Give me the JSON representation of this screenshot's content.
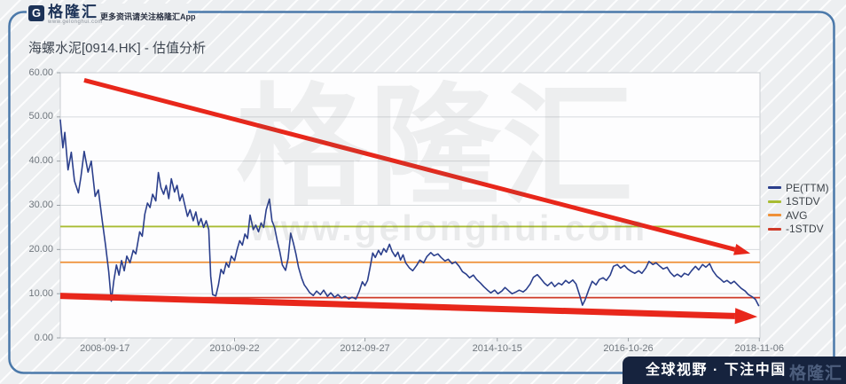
{
  "header": {
    "logo": {
      "icon": "G",
      "brand": "格隆汇",
      "url": "www.gelonghui.com",
      "tagline": "更多资讯请关注格隆汇App"
    },
    "title": "海螺水泥[0914.HK] - 估值分析"
  },
  "watermark": {
    "brand": "格隆汇",
    "url": "www.gelonghui.com"
  },
  "footer": {
    "slogan": "全球视野 · 下注中国",
    "brand": "格隆汇"
  },
  "colors": {
    "pe_line": "#2b3f8c",
    "stdv1_line": "#a8bc32",
    "avg_line": "#ef9036",
    "neg_stdv1_line": "#cf3a28",
    "arrow": "#e8271b",
    "frame": "#4b79aa",
    "footer_bg": "#16233e",
    "grid": "#d7dadd"
  },
  "legend": [
    {
      "label": "PE(TTM)",
      "color": "#2b3f8c"
    },
    {
      "label": "1STDV",
      "color": "#a8bc32"
    },
    {
      "label": "AVG",
      "color": "#ef9036"
    },
    {
      "label": "-1STDV",
      "color": "#cf3a28"
    }
  ],
  "chart_data": {
    "type": "line",
    "title": "海螺水泥[0914.HK] - 估值分析",
    "xlabel": "",
    "ylabel": "PE(TTM)",
    "grid": true,
    "legend_position": "right",
    "ylim": [
      0,
      60
    ],
    "xlim": [
      2008.02,
      2018.86
    ],
    "yticks": [
      {
        "value": 0,
        "label": "0.00"
      },
      {
        "value": 10,
        "label": "10.00"
      },
      {
        "value": 20,
        "label": "20.00"
      },
      {
        "value": 30,
        "label": "30.00"
      },
      {
        "value": 40,
        "label": "40.00"
      },
      {
        "value": 50,
        "label": "50.00"
      },
      {
        "value": 60,
        "label": "60.00"
      }
    ],
    "xticks": [
      {
        "year": 2008.71,
        "label": "2008-09-17"
      },
      {
        "year": 2010.72,
        "label": "2010-09-22"
      },
      {
        "year": 2012.74,
        "label": "2012-09-27"
      },
      {
        "year": 2014.79,
        "label": "2014-10-15"
      },
      {
        "year": 2016.82,
        "label": "2016-10-26"
      },
      {
        "year": 2018.85,
        "label": "2018-11-06"
      }
    ],
    "reference_lines": [
      {
        "name": "1STDV",
        "value": 25.2,
        "color": "#a8bc32"
      },
      {
        "name": "AVG",
        "value": 17.1,
        "color": "#ef9036"
      },
      {
        "name": "-1STDV",
        "value": 9.1,
        "color": "#cf3a28"
      }
    ],
    "annotations": [
      {
        "type": "arrow",
        "from": [
          2008.39,
          58.3
        ],
        "to": [
          2018.71,
          19.1
        ],
        "width": 5
      },
      {
        "type": "arrow",
        "from": [
          2008.02,
          9.5
        ],
        "to": [
          2018.82,
          4.8
        ],
        "width": 7
      }
    ],
    "series": [
      {
        "name": "PE(TTM)",
        "color": "#2b3f8c",
        "points": [
          [
            2008.02,
            49.3
          ],
          [
            2008.06,
            43.0
          ],
          [
            2008.09,
            46.5
          ],
          [
            2008.14,
            38.0
          ],
          [
            2008.19,
            42.0
          ],
          [
            2008.24,
            35.5
          ],
          [
            2008.3,
            32.8
          ],
          [
            2008.34,
            36.5
          ],
          [
            2008.39,
            42.2
          ],
          [
            2008.45,
            37.5
          ],
          [
            2008.5,
            40.0
          ],
          [
            2008.56,
            32.0
          ],
          [
            2008.61,
            33.5
          ],
          [
            2008.67,
            26.5
          ],
          [
            2008.72,
            21.0
          ],
          [
            2008.77,
            15.0
          ],
          [
            2008.81,
            8.3
          ],
          [
            2008.85,
            13.0
          ],
          [
            2008.89,
            16.5
          ],
          [
            2008.93,
            14.2
          ],
          [
            2008.97,
            17.5
          ],
          [
            2009.01,
            15.2
          ],
          [
            2009.05,
            18.5
          ],
          [
            2009.1,
            17.0
          ],
          [
            2009.15,
            19.8
          ],
          [
            2009.19,
            19.0
          ],
          [
            2009.25,
            24.0
          ],
          [
            2009.29,
            23.0
          ],
          [
            2009.33,
            28.0
          ],
          [
            2009.37,
            30.5
          ],
          [
            2009.41,
            29.5
          ],
          [
            2009.45,
            32.5
          ],
          [
            2009.5,
            31.0
          ],
          [
            2009.54,
            37.4
          ],
          [
            2009.58,
            34.0
          ],
          [
            2009.62,
            32.5
          ],
          [
            2009.66,
            34.5
          ],
          [
            2009.7,
            31.5
          ],
          [
            2009.74,
            36.0
          ],
          [
            2009.79,
            33.0
          ],
          [
            2009.83,
            34.5
          ],
          [
            2009.87,
            31.0
          ],
          [
            2009.91,
            32.5
          ],
          [
            2009.95,
            30.0
          ],
          [
            2009.99,
            27.5
          ],
          [
            2010.03,
            29.0
          ],
          [
            2010.08,
            26.5
          ],
          [
            2010.12,
            28.5
          ],
          [
            2010.16,
            25.5
          ],
          [
            2010.2,
            27.0
          ],
          [
            2010.24,
            25.0
          ],
          [
            2010.28,
            26.5
          ],
          [
            2010.32,
            24.5
          ],
          [
            2010.35,
            14.0
          ],
          [
            2010.38,
            9.8
          ],
          [
            2010.43,
            9.5
          ],
          [
            2010.47,
            12.0
          ],
          [
            2010.51,
            15.5
          ],
          [
            2010.55,
            14.5
          ],
          [
            2010.59,
            17.0
          ],
          [
            2010.63,
            16.0
          ],
          [
            2010.67,
            18.5
          ],
          [
            2010.72,
            17.5
          ],
          [
            2010.76,
            20.0
          ],
          [
            2010.8,
            22.0
          ],
          [
            2010.84,
            21.0
          ],
          [
            2010.88,
            23.5
          ],
          [
            2010.92,
            22.5
          ],
          [
            2010.96,
            27.8
          ],
          [
            2011.01,
            24.5
          ],
          [
            2011.05,
            25.5
          ],
          [
            2011.09,
            24.0
          ],
          [
            2011.13,
            26.0
          ],
          [
            2011.17,
            25.0
          ],
          [
            2011.21,
            29.0
          ],
          [
            2011.26,
            31.4
          ],
          [
            2011.3,
            26.5
          ],
          [
            2011.34,
            25.0
          ],
          [
            2011.38,
            22.0
          ],
          [
            2011.42,
            19.5
          ],
          [
            2011.46,
            16.5
          ],
          [
            2011.51,
            15.3
          ],
          [
            2011.55,
            18.0
          ],
          [
            2011.59,
            23.7
          ],
          [
            2011.63,
            21.5
          ],
          [
            2011.67,
            19.0
          ],
          [
            2011.71,
            16.0
          ],
          [
            2011.76,
            13.5
          ],
          [
            2011.8,
            12.0
          ],
          [
            2011.84,
            11.2
          ],
          [
            2011.88,
            10.3
          ],
          [
            2011.94,
            9.6
          ],
          [
            2011.99,
            10.6
          ],
          [
            2012.05,
            9.8
          ],
          [
            2012.1,
            10.8
          ],
          [
            2012.16,
            9.4
          ],
          [
            2012.21,
            10.2
          ],
          [
            2012.27,
            9.2
          ],
          [
            2012.32,
            9.8
          ],
          [
            2012.38,
            9.0
          ],
          [
            2012.43,
            9.4
          ],
          [
            2012.49,
            8.8
          ],
          [
            2012.54,
            9.2
          ],
          [
            2012.6,
            8.8
          ],
          [
            2012.65,
            10.5
          ],
          [
            2012.7,
            12.7
          ],
          [
            2012.74,
            11.8
          ],
          [
            2012.78,
            13.0
          ],
          [
            2012.82,
            16.0
          ],
          [
            2012.86,
            19.2
          ],
          [
            2012.9,
            18.2
          ],
          [
            2012.95,
            19.8
          ],
          [
            2012.99,
            18.8
          ],
          [
            2013.03,
            20.2
          ],
          [
            2013.07,
            19.4
          ],
          [
            2013.12,
            21.2
          ],
          [
            2013.16,
            19.6
          ],
          [
            2013.21,
            18.4
          ],
          [
            2013.25,
            19.4
          ],
          [
            2013.29,
            17.6
          ],
          [
            2013.33,
            18.8
          ],
          [
            2013.37,
            17.0
          ],
          [
            2013.43,
            15.8
          ],
          [
            2013.48,
            15.2
          ],
          [
            2013.54,
            16.4
          ],
          [
            2013.59,
            17.6
          ],
          [
            2013.65,
            17.0
          ],
          [
            2013.7,
            18.4
          ],
          [
            2013.76,
            19.3
          ],
          [
            2013.81,
            18.6
          ],
          [
            2013.87,
            19.0
          ],
          [
            2013.92,
            18.2
          ],
          [
            2013.98,
            17.4
          ],
          [
            2014.03,
            17.8
          ],
          [
            2014.09,
            16.8
          ],
          [
            2014.14,
            17.2
          ],
          [
            2014.2,
            16.2
          ],
          [
            2014.25,
            15.0
          ],
          [
            2014.31,
            14.4
          ],
          [
            2014.36,
            13.6
          ],
          [
            2014.42,
            14.2
          ],
          [
            2014.47,
            13.2
          ],
          [
            2014.53,
            12.4
          ],
          [
            2014.58,
            11.6
          ],
          [
            2014.64,
            10.8
          ],
          [
            2014.69,
            10.2
          ],
          [
            2014.75,
            10.8
          ],
          [
            2014.8,
            10.0
          ],
          [
            2014.86,
            10.6
          ],
          [
            2014.91,
            11.4
          ],
          [
            2014.97,
            10.6
          ],
          [
            2015.02,
            10.0
          ],
          [
            2015.08,
            10.4
          ],
          [
            2015.13,
            10.8
          ],
          [
            2015.19,
            10.4
          ],
          [
            2015.24,
            11.0
          ],
          [
            2015.3,
            12.2
          ],
          [
            2015.35,
            13.7
          ],
          [
            2015.41,
            14.3
          ],
          [
            2015.46,
            13.5
          ],
          [
            2015.52,
            12.4
          ],
          [
            2015.57,
            11.8
          ],
          [
            2015.63,
            12.6
          ],
          [
            2015.68,
            11.6
          ],
          [
            2015.74,
            12.4
          ],
          [
            2015.79,
            12.0
          ],
          [
            2015.85,
            13.0
          ],
          [
            2015.9,
            12.4
          ],
          [
            2015.96,
            13.1
          ],
          [
            2016.01,
            12.2
          ],
          [
            2016.07,
            9.5
          ],
          [
            2016.11,
            7.4
          ],
          [
            2016.15,
            8.6
          ],
          [
            2016.21,
            11.0
          ],
          [
            2016.26,
            12.8
          ],
          [
            2016.32,
            12.0
          ],
          [
            2016.37,
            13.2
          ],
          [
            2016.43,
            13.6
          ],
          [
            2016.48,
            13.0
          ],
          [
            2016.54,
            14.2
          ],
          [
            2016.59,
            16.2
          ],
          [
            2016.65,
            16.6
          ],
          [
            2016.7,
            15.8
          ],
          [
            2016.76,
            16.4
          ],
          [
            2016.81,
            15.6
          ],
          [
            2016.87,
            15.0
          ],
          [
            2016.92,
            14.6
          ],
          [
            2016.98,
            15.2
          ],
          [
            2017.03,
            14.6
          ],
          [
            2017.09,
            15.8
          ],
          [
            2017.14,
            17.3
          ],
          [
            2017.2,
            16.6
          ],
          [
            2017.25,
            17.0
          ],
          [
            2017.31,
            16.2
          ],
          [
            2017.36,
            15.6
          ],
          [
            2017.42,
            16.0
          ],
          [
            2017.47,
            14.8
          ],
          [
            2017.53,
            13.9
          ],
          [
            2017.58,
            14.4
          ],
          [
            2017.64,
            13.8
          ],
          [
            2017.69,
            14.6
          ],
          [
            2017.75,
            14.2
          ],
          [
            2017.8,
            15.2
          ],
          [
            2017.86,
            16.2
          ],
          [
            2017.91,
            15.4
          ],
          [
            2017.97,
            16.6
          ],
          [
            2018.02,
            16.0
          ],
          [
            2018.08,
            16.8
          ],
          [
            2018.13,
            15.2
          ],
          [
            2018.19,
            14.0
          ],
          [
            2018.24,
            13.4
          ],
          [
            2018.3,
            12.6
          ],
          [
            2018.35,
            13.0
          ],
          [
            2018.41,
            12.3
          ],
          [
            2018.46,
            12.8
          ],
          [
            2018.52,
            11.9
          ],
          [
            2018.57,
            11.2
          ],
          [
            2018.63,
            10.6
          ],
          [
            2018.68,
            9.8
          ],
          [
            2018.74,
            9.3
          ],
          [
            2018.79,
            8.7
          ],
          [
            2018.84,
            7.3
          ]
        ]
      }
    ]
  }
}
